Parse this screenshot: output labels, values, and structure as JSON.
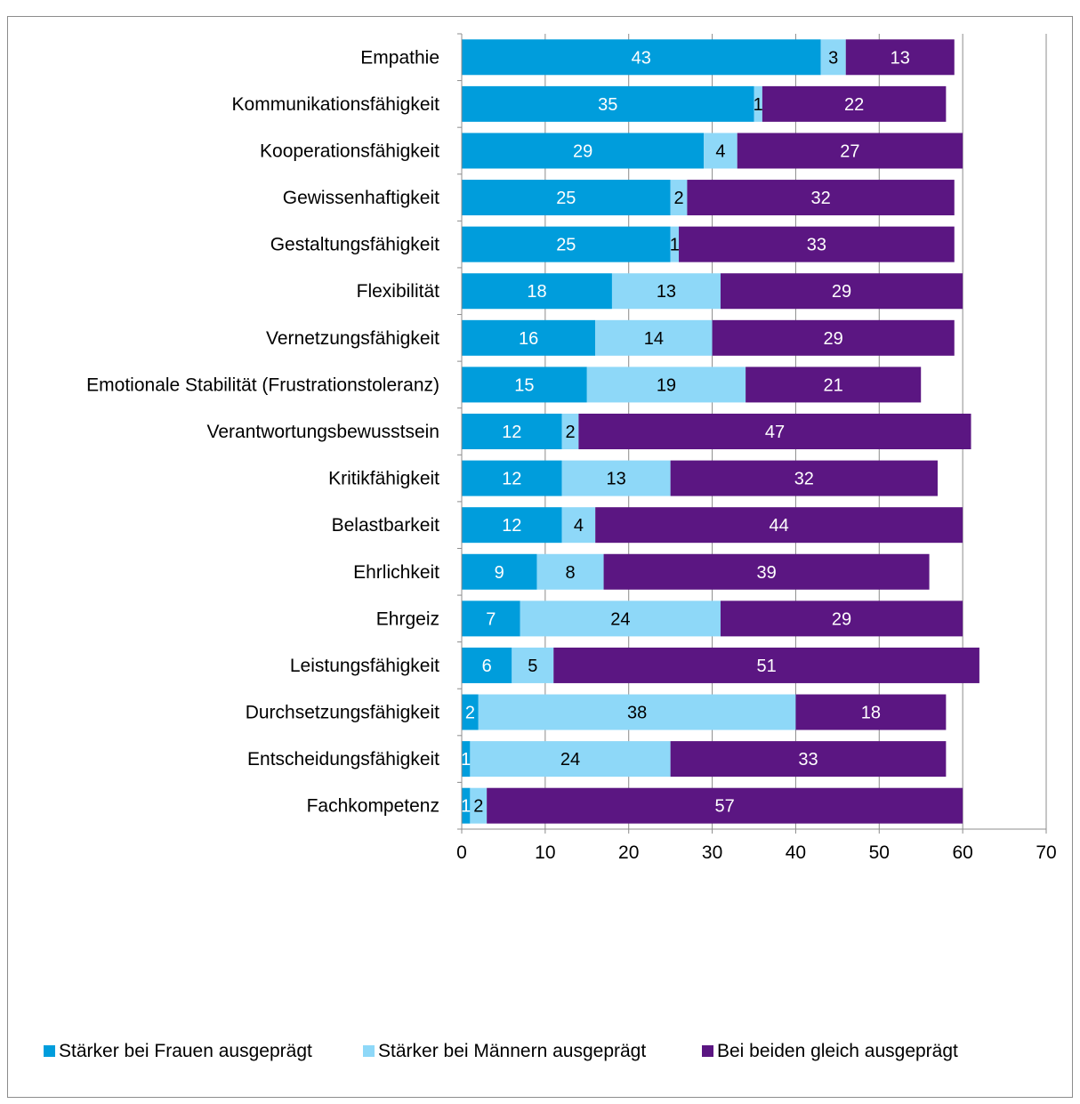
{
  "chart_data": {
    "type": "bar",
    "orientation": "horizontal",
    "stacked": true,
    "title": "",
    "categories": [
      "Empathie",
      "Kommunikationsfähigkeit",
      "Kooperationsfähigkeit",
      "Gewissenhaftigkeit",
      "Gestaltungsfähigkeit",
      "Flexibilität",
      "Vernetzungsfähigkeit",
      "Emotionale Stabilität (Frustrationstoleranz)",
      "Verantwortungsbewusstsein",
      "Kritikfähigkeit",
      "Belastbarkeit",
      "Ehrlichkeit",
      "Ehrgeiz",
      "Leistungsfähigkeit",
      "Durchsetzungsfähigkeit",
      "Entscheidungsfähigkeit",
      "Fachkompetenz"
    ],
    "series": [
      {
        "name": "Stärker bei Frauen ausgeprägt",
        "color": "#009ddc",
        "label_color": "#ffffff",
        "values": [
          43,
          35,
          29,
          25,
          25,
          18,
          16,
          15,
          12,
          12,
          12,
          9,
          7,
          6,
          2,
          1,
          1
        ]
      },
      {
        "name": "Stärker bei Männern ausgeprägt",
        "color": "#8ed8f8",
        "label_color": "#000000",
        "values": [
          3,
          1,
          4,
          2,
          1,
          13,
          14,
          19,
          2,
          13,
          4,
          8,
          24,
          5,
          38,
          24,
          2
        ]
      },
      {
        "name": "Bei beiden gleich ausgeprägt",
        "color": "#5b1682",
        "label_color": "#ffffff",
        "values": [
          13,
          22,
          27,
          32,
          33,
          29,
          29,
          21,
          47,
          32,
          44,
          39,
          29,
          51,
          18,
          33,
          57
        ]
      }
    ],
    "xlim": [
      0,
      70
    ],
    "x_ticks": [
      0,
      10,
      20,
      30,
      40,
      50,
      60,
      70
    ],
    "grid": "vertical",
    "legend_position": "bottom"
  }
}
